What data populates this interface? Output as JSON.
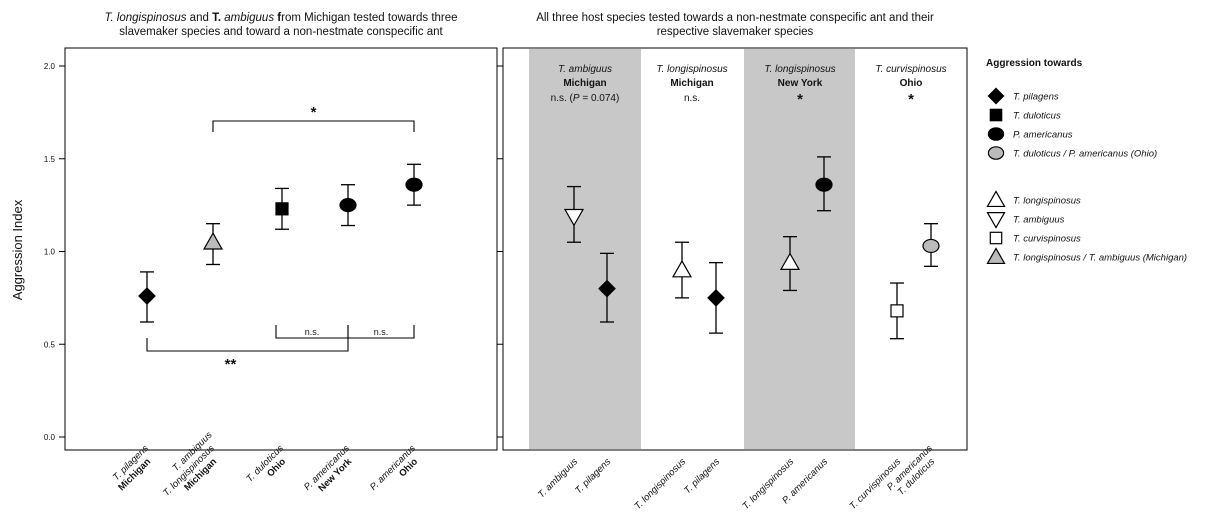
{
  "figure": {
    "left_title": [
      [
        {
          "t": "T. longispinosus",
          "i": true
        },
        {
          "t": " and "
        },
        {
          "t": "T.",
          "b": true
        },
        {
          "t": " "
        },
        {
          "t": "ambiguus",
          "i": true
        },
        {
          "t": " "
        },
        {
          "t": "f",
          "b": true
        },
        {
          "t": "rom Michigan tested towards three"
        }
      ],
      [
        {
          "t": "slavemaker species and toward a non-nestmate conspecific ant"
        }
      ]
    ],
    "right_title": [
      [
        {
          "t": "All three host species tested towards a non-nestmate conspecific ant and their"
        }
      ],
      [
        {
          "t": "respective slavemaker species"
        }
      ]
    ],
    "y_label": "Aggression Index",
    "legend_title": "Aggression towards"
  },
  "legend": [
    {
      "marker": "diamond",
      "fill": "#000000",
      "label": "T. pilagens"
    },
    {
      "marker": "square",
      "fill": "#000000",
      "label": "T. duloticus"
    },
    {
      "marker": "circle",
      "fill": "#000000",
      "label": "P. americanus"
    },
    {
      "marker": "circle",
      "fill": "#bbbbbb",
      "label": "T. duloticus / P. americanus (Ohio)"
    },
    {
      "marker": "tri-up",
      "fill": "#ffffff",
      "label": "T. longispinosus"
    },
    {
      "marker": "tri-down",
      "fill": "#ffffff",
      "label": "T. ambiguus"
    },
    {
      "marker": "square",
      "fill": "#ffffff",
      "label": "T. curvispinosus"
    },
    {
      "marker": "tri-up",
      "fill": "#bbbbbb",
      "label": "T. longispinosus / T. ambiguus (Michigan)"
    }
  ],
  "panel_headers": [
    {
      "species": "T. ambiguus",
      "site": "Michigan",
      "note": "n.s. (P = 0.074)",
      "shaded": true
    },
    {
      "species": "T. longispinosus",
      "site": "Michigan",
      "note": "n.s.",
      "shaded": false
    },
    {
      "species": "T. longispinosus",
      "site": "New York",
      "note": "*",
      "shaded": true
    },
    {
      "species": "T. curvispinosus",
      "site": "Ohio",
      "note": "*",
      "shaded": false
    }
  ],
  "significance": [
    {
      "label": "*",
      "from": 1,
      "to": 4,
      "side": "above"
    },
    {
      "label": "**",
      "from": 0,
      "to": 3,
      "side": "below"
    },
    {
      "label": "n.s.",
      "from": 2,
      "to": 3,
      "side": "below"
    },
    {
      "label": "n.s.",
      "from": 3,
      "to": 4,
      "side": "below"
    }
  ],
  "chart_data": [
    {
      "type": "scatter",
      "title": "T. longispinosus and T. ambiguus from Michigan tested towards three slavemaker species and toward a non-nestmate conspecific ant",
      "ylabel": "Aggression Index",
      "ylim": [
        0,
        2
      ],
      "yticks": [
        "0.0",
        "0.5",
        "1.0",
        "1.5",
        "2.0"
      ],
      "points": [
        {
          "x_label": [
            "T. pilagens"
          ],
          "x_sub": "Michigan",
          "marker": "diamond",
          "fill": "#000000",
          "y": 0.76,
          "low": 0.62,
          "high": 0.89
        },
        {
          "x_label": [
            "T. ambiguus",
            "T. longispinosus"
          ],
          "x_sub": "Michigan",
          "marker": "tri-up",
          "fill": "#bbbbbb",
          "y": 1.05,
          "low": 0.93,
          "high": 1.15
        },
        {
          "x_label": [
            "T. duloticus"
          ],
          "x_sub": "Ohio",
          "marker": "square",
          "fill": "#000000",
          "y": 1.23,
          "low": 1.12,
          "high": 1.34
        },
        {
          "x_label": [
            "P. americanus"
          ],
          "x_sub": "New York",
          "marker": "circle",
          "fill": "#000000",
          "y": 1.25,
          "low": 1.14,
          "high": 1.36
        },
        {
          "x_label": [
            "P. americanus"
          ],
          "x_sub": "Ohio",
          "marker": "circle",
          "fill": "#000000",
          "y": 1.36,
          "low": 1.25,
          "high": 1.47
        }
      ]
    },
    {
      "type": "scatter",
      "title": "All three host species tested towards a non-nestmate conspecific ant and their respective slavemaker species",
      "ylim": [
        0,
        2
      ],
      "points": [
        {
          "x_label": [
            "T. ambiguus"
          ],
          "marker": "tri-down",
          "fill": "#ffffff",
          "y": 1.19,
          "low": 1.05,
          "high": 1.35
        },
        {
          "x_label": [
            "T. pilagens"
          ],
          "marker": "diamond",
          "fill": "#000000",
          "y": 0.8,
          "low": 0.62,
          "high": 0.99
        },
        {
          "x_label": [
            "T. longispinosus"
          ],
          "marker": "tri-up",
          "fill": "#ffffff",
          "y": 0.9,
          "low": 0.75,
          "high": 1.05
        },
        {
          "x_label": [
            "T. pilagens"
          ],
          "marker": "diamond",
          "fill": "#000000",
          "y": 0.75,
          "low": 0.56,
          "high": 0.94
        },
        {
          "x_label": [
            "T. longispinosus"
          ],
          "marker": "tri-up",
          "fill": "#ffffff",
          "y": 0.94,
          "low": 0.79,
          "high": 1.08
        },
        {
          "x_label": [
            "P. americanus"
          ],
          "marker": "circle",
          "fill": "#000000",
          "y": 1.36,
          "low": 1.22,
          "high": 1.51
        },
        {
          "x_label": [
            "T. curvispinosus"
          ],
          "marker": "square",
          "fill": "#ffffff",
          "y": 0.68,
          "low": 0.53,
          "high": 0.83
        },
        {
          "x_label": [
            "P. americanus",
            "T. duloticus"
          ],
          "marker": "circle",
          "fill": "#bbbbbb",
          "y": 1.03,
          "low": 0.92,
          "high": 1.15
        }
      ]
    }
  ]
}
